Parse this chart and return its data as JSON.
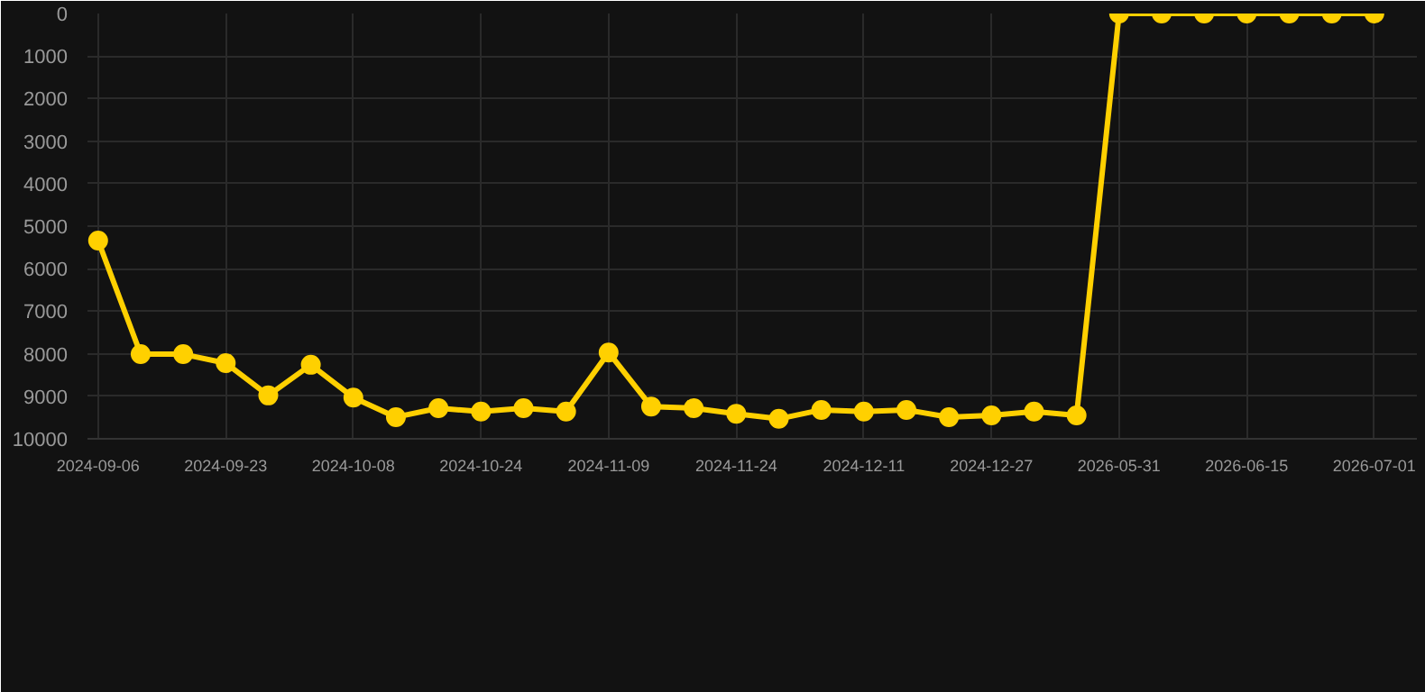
{
  "chart_data": {
    "type": "line",
    "categories": [
      "2024-09-06",
      null,
      null,
      "2024-09-23",
      null,
      null,
      "2024-10-08",
      null,
      null,
      "2024-10-24",
      null,
      null,
      "2024-11-09",
      null,
      null,
      "2024-11-24",
      null,
      null,
      "2024-12-11",
      null,
      null,
      "2024-12-27",
      null,
      null,
      "2026-05-31",
      null,
      null,
      "2026-06-15",
      null,
      null,
      "2026-07-01"
    ],
    "series": [
      {
        "color": "#ffd000",
        "values": [
          5340,
          8010,
          8010,
          8220,
          8980,
          8260,
          9030,
          9490,
          9280,
          9360,
          9280,
          9360,
          7970,
          9240,
          9280,
          9410,
          9530,
          9320,
          9360,
          9320,
          9490,
          9450,
          9360,
          9450,
          0,
          0,
          0,
          0,
          0,
          0,
          0
        ]
      }
    ],
    "ylim": [
      10000,
      0
    ],
    "yticks": [
      0,
      1000,
      2000,
      3000,
      4000,
      5000,
      6000,
      7000,
      8000,
      9000,
      10000
    ],
    "grid": true,
    "marker": "circle",
    "line_style": "solid"
  }
}
